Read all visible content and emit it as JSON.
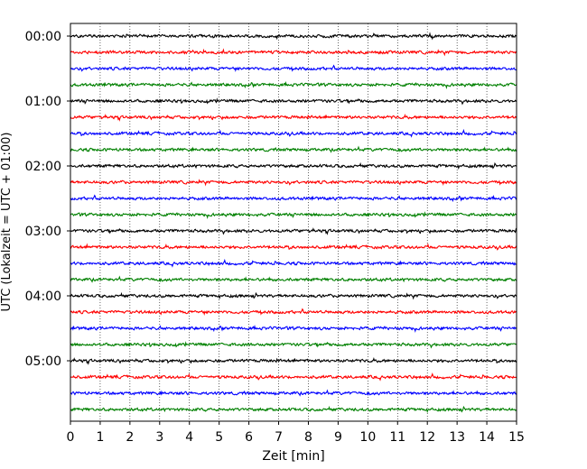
{
  "chart_data": {
    "type": "line",
    "title": "",
    "xlabel": "Zeit  [min]",
    "ylabel": "UTC (Lokalzeit = UTC + 01:00)",
    "xlim": [
      0,
      15
    ],
    "x_ticks": [
      0,
      1,
      2,
      3,
      4,
      5,
      6,
      7,
      8,
      9,
      10,
      11,
      12,
      13,
      14,
      15
    ],
    "x_tick_labels": [
      "0",
      "1",
      "2",
      "3",
      "4",
      "5",
      "6",
      "7",
      "8",
      "9",
      "10",
      "11",
      "12",
      "13",
      "14",
      "15"
    ],
    "y_tick_labels": [
      "00:00",
      "01:00",
      "02:00",
      "03:00",
      "04:00",
      "05:00"
    ],
    "y_tick_rows": [
      0,
      4,
      8,
      12,
      16,
      20
    ],
    "grid": "vertical dotted at each minute",
    "row_interval_minutes": 15,
    "rows": [
      {
        "start": "00:00",
        "color": "#000000"
      },
      {
        "start": "00:15",
        "color": "#ff0000"
      },
      {
        "start": "00:30",
        "color": "#0000ff"
      },
      {
        "start": "00:45",
        "color": "#008000"
      },
      {
        "start": "01:00",
        "color": "#000000"
      },
      {
        "start": "01:15",
        "color": "#ff0000"
      },
      {
        "start": "01:30",
        "color": "#0000ff"
      },
      {
        "start": "01:45",
        "color": "#008000"
      },
      {
        "start": "02:00",
        "color": "#000000"
      },
      {
        "start": "02:15",
        "color": "#ff0000"
      },
      {
        "start": "02:30",
        "color": "#0000ff"
      },
      {
        "start": "02:45",
        "color": "#008000"
      },
      {
        "start": "03:00",
        "color": "#000000"
      },
      {
        "start": "03:15",
        "color": "#ff0000"
      },
      {
        "start": "03:30",
        "color": "#0000ff"
      },
      {
        "start": "03:45",
        "color": "#008000"
      },
      {
        "start": "04:00",
        "color": "#000000"
      },
      {
        "start": "04:15",
        "color": "#ff0000"
      },
      {
        "start": "04:30",
        "color": "#0000ff"
      },
      {
        "start": "04:45",
        "color": "#008000"
      },
      {
        "start": "05:00",
        "color": "#000000"
      },
      {
        "start": "05:15",
        "color": "#ff0000"
      },
      {
        "start": "05:30",
        "color": "#0000ff"
      },
      {
        "start": "05:45",
        "color": "#008000"
      }
    ]
  }
}
